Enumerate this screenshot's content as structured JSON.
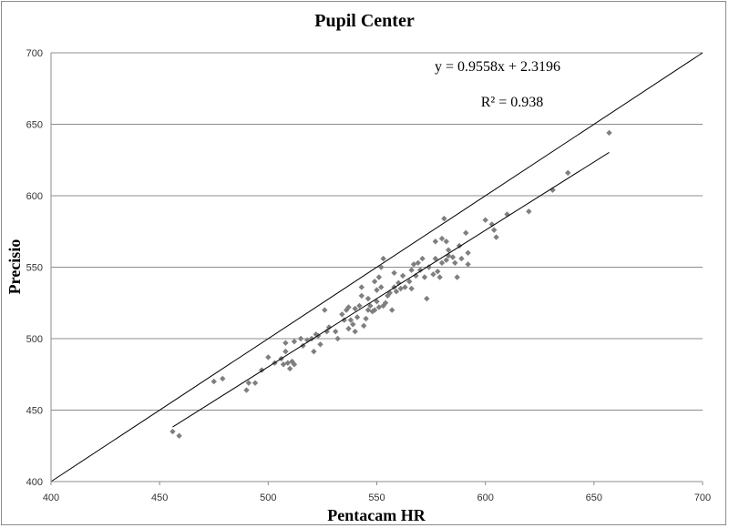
{
  "chart_data": {
    "type": "scatter",
    "title": "Pupil Center",
    "xlabel": "Pentacam HR",
    "ylabel": "Precisio",
    "xlim": [
      400,
      700
    ],
    "ylim": [
      400,
      700
    ],
    "x_ticks": [
      400,
      450,
      500,
      550,
      600,
      650,
      700
    ],
    "y_ticks": [
      400,
      450,
      500,
      550,
      600,
      650,
      700
    ],
    "grid": "horizontal",
    "colors": {
      "points": "#7f7f7f",
      "lines": "#000000",
      "grid": "#8c8c8c"
    },
    "annotations": {
      "equation": "y = 0.9558x + 2.3196",
      "r_squared": "R² = 0.938"
    },
    "reference_line": {
      "x": [
        400,
        700
      ],
      "y": [
        400,
        700
      ]
    },
    "trendline": {
      "x": [
        456,
        657
      ],
      "y": [
        438.2,
        630.3
      ]
    },
    "series": [
      {
        "points": [
          [
            456,
            435
          ],
          [
            459,
            432
          ],
          [
            475,
            470
          ],
          [
            479,
            472
          ],
          [
            490,
            464
          ],
          [
            491,
            469
          ],
          [
            494,
            469
          ],
          [
            497,
            478
          ],
          [
            500,
            487
          ],
          [
            503,
            483
          ],
          [
            506,
            486
          ],
          [
            507,
            482
          ],
          [
            508,
            497
          ],
          [
            508,
            491
          ],
          [
            509,
            483
          ],
          [
            510,
            479
          ],
          [
            511,
            484
          ],
          [
            512,
            482
          ],
          [
            512,
            498
          ],
          [
            515,
            500
          ],
          [
            516,
            495
          ],
          [
            518,
            499
          ],
          [
            520,
            500
          ],
          [
            521,
            491
          ],
          [
            522,
            503
          ],
          [
            523,
            502
          ],
          [
            524,
            496
          ],
          [
            526,
            520
          ],
          [
            527,
            505
          ],
          [
            528,
            508
          ],
          [
            531,
            505
          ],
          [
            532,
            500
          ],
          [
            534,
            517
          ],
          [
            535,
            513
          ],
          [
            536,
            520
          ],
          [
            537,
            507
          ],
          [
            537,
            522
          ],
          [
            538,
            513
          ],
          [
            539,
            510
          ],
          [
            540,
            505
          ],
          [
            540,
            521
          ],
          [
            541,
            515
          ],
          [
            542,
            523
          ],
          [
            543,
            530
          ],
          [
            543,
            536
          ],
          [
            544,
            509
          ],
          [
            545,
            514
          ],
          [
            546,
            528
          ],
          [
            546,
            520
          ],
          [
            547,
            523
          ],
          [
            548,
            519
          ],
          [
            549,
            520
          ],
          [
            549,
            540
          ],
          [
            550,
            534
          ],
          [
            550,
            526
          ],
          [
            551,
            543
          ],
          [
            551,
            522
          ],
          [
            552,
            536
          ],
          [
            552,
            550
          ],
          [
            553,
            523
          ],
          [
            553,
            556
          ],
          [
            554,
            525
          ],
          [
            555,
            530
          ],
          [
            556,
            532
          ],
          [
            557,
            520
          ],
          [
            558,
            546
          ],
          [
            558,
            536
          ],
          [
            559,
            533
          ],
          [
            560,
            539
          ],
          [
            561,
            535
          ],
          [
            562,
            544
          ],
          [
            563,
            536
          ],
          [
            565,
            540
          ],
          [
            566,
            535
          ],
          [
            566,
            548
          ],
          [
            567,
            552
          ],
          [
            568,
            544
          ],
          [
            569,
            553
          ],
          [
            570,
            548
          ],
          [
            571,
            556
          ],
          [
            572,
            543
          ],
          [
            573,
            528
          ],
          [
            574,
            550
          ],
          [
            576,
            545
          ],
          [
            577,
            568
          ],
          [
            577,
            556
          ],
          [
            578,
            547
          ],
          [
            579,
            543
          ],
          [
            580,
            553
          ],
          [
            580,
            570
          ],
          [
            581,
            584
          ],
          [
            582,
            568
          ],
          [
            582,
            555
          ],
          [
            583,
            562
          ],
          [
            583,
            558
          ],
          [
            585,
            557
          ],
          [
            586,
            553
          ],
          [
            587,
            543
          ],
          [
            588,
            565
          ],
          [
            589,
            556
          ],
          [
            591,
            574
          ],
          [
            592,
            560
          ],
          [
            592,
            552
          ],
          [
            600,
            583
          ],
          [
            603,
            580
          ],
          [
            604,
            576
          ],
          [
            605,
            571
          ],
          [
            610,
            587
          ],
          [
            620,
            589
          ],
          [
            631,
            604
          ],
          [
            638,
            616
          ],
          [
            657,
            644
          ]
        ]
      }
    ]
  }
}
